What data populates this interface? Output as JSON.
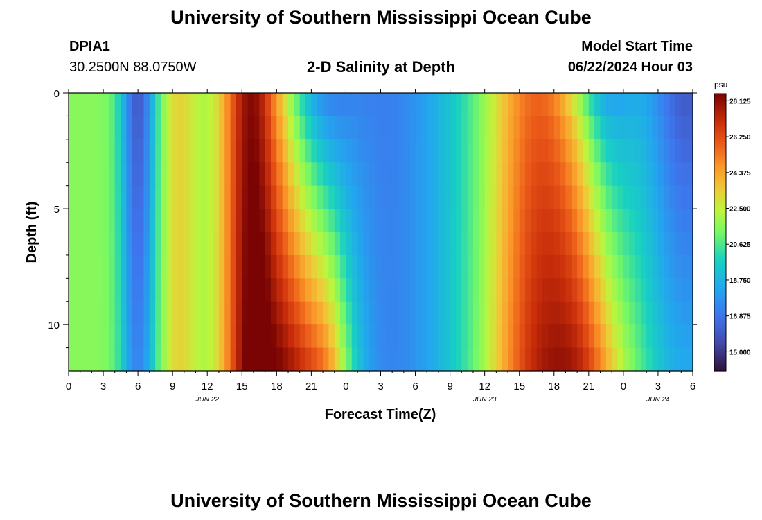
{
  "header": {
    "title": "University of Southern Mississippi Ocean Cube",
    "station": "DPIA1",
    "coords": "30.2500N  88.0750W",
    "subtitle": "2-D Salinity at Depth",
    "model_start_label": "Model Start Time",
    "model_start_value": "06/22/2024 Hour 03"
  },
  "footer": {
    "title": "University of Southern Mississippi Ocean Cube"
  },
  "chart_data": {
    "type": "heatmap",
    "title": "2-D Salinity at Depth",
    "xlabel": "Forecast Time(Z)",
    "ylabel": "Depth (ft)",
    "xlim": [
      0,
      54
    ],
    "ylim": [
      12,
      0
    ],
    "x_ticks": [
      0,
      3,
      6,
      9,
      12,
      15,
      18,
      21,
      24,
      27,
      30,
      33,
      36,
      39,
      42,
      45,
      48,
      51,
      54
    ],
    "x_tick_labels": [
      "0",
      "3",
      "6",
      "9",
      "12",
      "15",
      "18",
      "21",
      "0",
      "3",
      "6",
      "9",
      "12",
      "15",
      "18",
      "21",
      "0",
      "3",
      "6"
    ],
    "y_ticks": [
      0,
      5,
      10
    ],
    "y_tick_labels": [
      "0",
      "5",
      "10"
    ],
    "date_labels": [
      {
        "x": 12,
        "text": "JUN 22"
      },
      {
        "x": 36,
        "text": "JUN 23"
      },
      {
        "x": 51,
        "text": "JUN 24"
      }
    ],
    "colorbar": {
      "unit": "psu",
      "min": 14.0,
      "max": 28.5,
      "ticks": [
        15.0,
        16.875,
        18.75,
        20.625,
        22.5,
        24.375,
        26.25,
        28.125
      ],
      "tick_labels": [
        "15.000",
        "16.875",
        "18.750",
        "20.625",
        "22.500",
        "24.375",
        "26.250",
        "28.125"
      ]
    },
    "depth_levels_ft": [
      0,
      1,
      2,
      3,
      4,
      5,
      6,
      7,
      8,
      9,
      10,
      11,
      12
    ],
    "description": "Salinity (psu) over 54 forecast hours by depth (ft). Low salinity columns around hours 5-7 and 27-33; high salinity near hours 15-18 and 39-45 with sharper haloclines near surface."
  }
}
